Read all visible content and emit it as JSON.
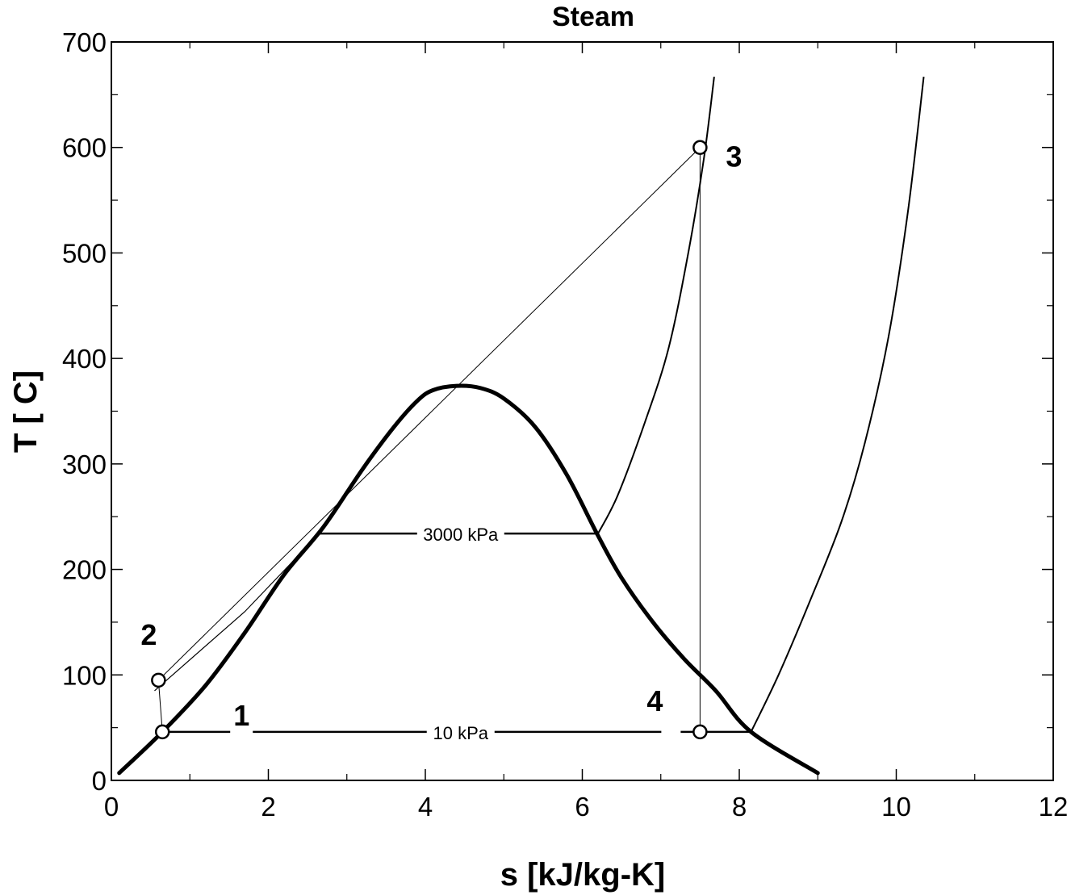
{
  "chart_data": {
    "type": "line",
    "title": "Steam",
    "xlabel": "s [kJ/kg-K]",
    "ylabel": "T [ C]",
    "xlim": [
      0,
      12
    ],
    "ylim": [
      0,
      700
    ],
    "x_major_ticks": [
      0,
      2,
      4,
      6,
      8,
      10,
      12
    ],
    "y_major_ticks": [
      0,
      100,
      200,
      300,
      400,
      500,
      600,
      700
    ],
    "x_tick_labels": [
      "0",
      "2",
      "4",
      "6",
      "8",
      "10",
      "12"
    ],
    "y_tick_labels": [
      "0",
      "100",
      "200",
      "300",
      "400",
      "500",
      "600",
      "700"
    ],
    "x_minor_step": 1,
    "y_minor_step": 50,
    "grid": false,
    "series": [
      {
        "role": "saturation-dome",
        "points": [
          [
            0.1,
            7
          ],
          [
            0.65,
            46
          ],
          [
            1.2,
            90
          ],
          [
            1.7,
            140
          ],
          [
            2.2,
            195
          ],
          [
            2.7,
            240
          ],
          [
            3.2,
            295
          ],
          [
            3.6,
            335
          ],
          [
            3.9,
            360
          ],
          [
            4.1,
            370
          ],
          [
            4.4,
            374
          ],
          [
            4.7,
            372
          ],
          [
            5.0,
            362
          ],
          [
            5.4,
            335
          ],
          [
            5.8,
            290
          ],
          [
            6.2,
            232
          ],
          [
            6.5,
            192
          ],
          [
            6.9,
            150
          ],
          [
            7.3,
            115
          ],
          [
            7.7,
            85
          ],
          [
            8.15,
            46
          ],
          [
            9.0,
            7
          ]
        ]
      },
      {
        "role": "isobar-3000",
        "points": [
          [
            0.55,
            85
          ],
          [
            1.7,
            160
          ],
          [
            2.65,
            234
          ],
          [
            6.2,
            234
          ],
          [
            6.45,
            270
          ],
          [
            6.8,
            340
          ],
          [
            7.1,
            410
          ],
          [
            7.35,
            500
          ],
          [
            7.55,
            590
          ],
          [
            7.68,
            667
          ]
        ]
      },
      {
        "role": "isobar-10",
        "points": [
          [
            0.65,
            46
          ],
          [
            8.15,
            46
          ],
          [
            8.5,
            100
          ],
          [
            8.9,
            170
          ],
          [
            9.3,
            245
          ],
          [
            9.6,
            320
          ],
          [
            9.9,
            420
          ],
          [
            10.15,
            540
          ],
          [
            10.35,
            667
          ]
        ]
      },
      {
        "role": "cycle",
        "points": [
          [
            0.65,
            46
          ],
          [
            0.6,
            95
          ],
          [
            7.5,
            600
          ],
          [
            7.5,
            46
          ],
          [
            0.65,
            46
          ]
        ]
      }
    ],
    "state_points": [
      {
        "label": "1",
        "s": 0.65,
        "T": 46
      },
      {
        "label": "2",
        "s": 0.6,
        "T": 95
      },
      {
        "label": "3",
        "s": 7.5,
        "T": 600
      },
      {
        "label": "4",
        "s": 7.5,
        "T": 46
      }
    ],
    "annotations": [
      {
        "text": "3000 kPa",
        "s": 4.45,
        "T": 234
      },
      {
        "text": "10 kPa",
        "s": 4.45,
        "T": 46
      }
    ]
  }
}
